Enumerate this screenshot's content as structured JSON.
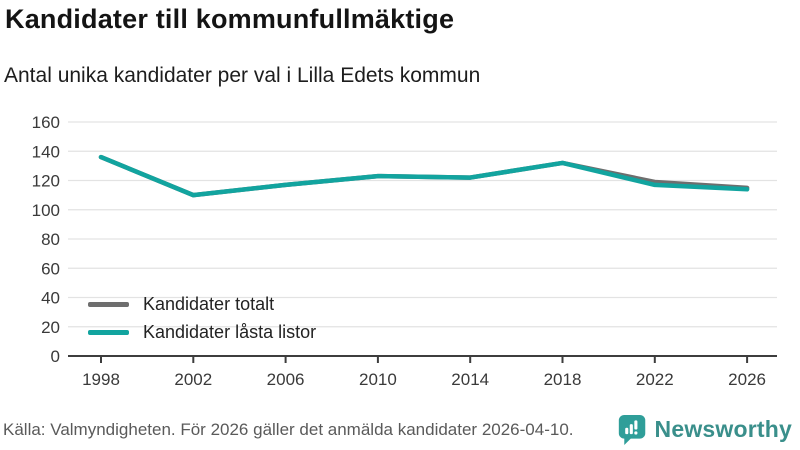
{
  "header": {
    "title": "Kandidater till kommunfullmäktige",
    "subtitle": "Antal unika kandidater per val i Lilla Edets kommun"
  },
  "chart_data": {
    "type": "line",
    "title": "Kandidater till kommunfullmäktige",
    "subtitle": "Antal unika kandidater per val i Lilla Edets kommun",
    "x": [
      1998,
      2002,
      2006,
      2010,
      2014,
      2018,
      2022,
      2026
    ],
    "series": [
      {
        "name": "Kandidater totalt",
        "color": "#6e6e6e",
        "values": [
          136,
          110,
          117,
          123,
          122,
          132,
          119,
          115
        ]
      },
      {
        "name": "Kandidater låsta listor",
        "color": "#12a49f",
        "values": [
          136,
          110,
          117,
          123,
          122,
          132,
          117,
          114
        ]
      }
    ],
    "xlabel": "",
    "ylabel": "",
    "ylim": [
      0,
      160
    ],
    "ytick_step": 20,
    "grid": true,
    "legend_position": "inside-bottom-left"
  },
  "footer": {
    "source": "Källa: Valmyndigheten. För 2026 gäller det anmälda kandidater 2026-04-10.",
    "brand": "Newsworthy"
  },
  "colors": {
    "accent_teal": "#12a49f",
    "series_gray": "#6e6e6e",
    "gridline": "#e3e3e3",
    "axis": "#3d3d3d",
    "brand_icon": "#2f9e99",
    "brand_text": "#3a8f8b",
    "source_text": "#5a5a5a"
  }
}
